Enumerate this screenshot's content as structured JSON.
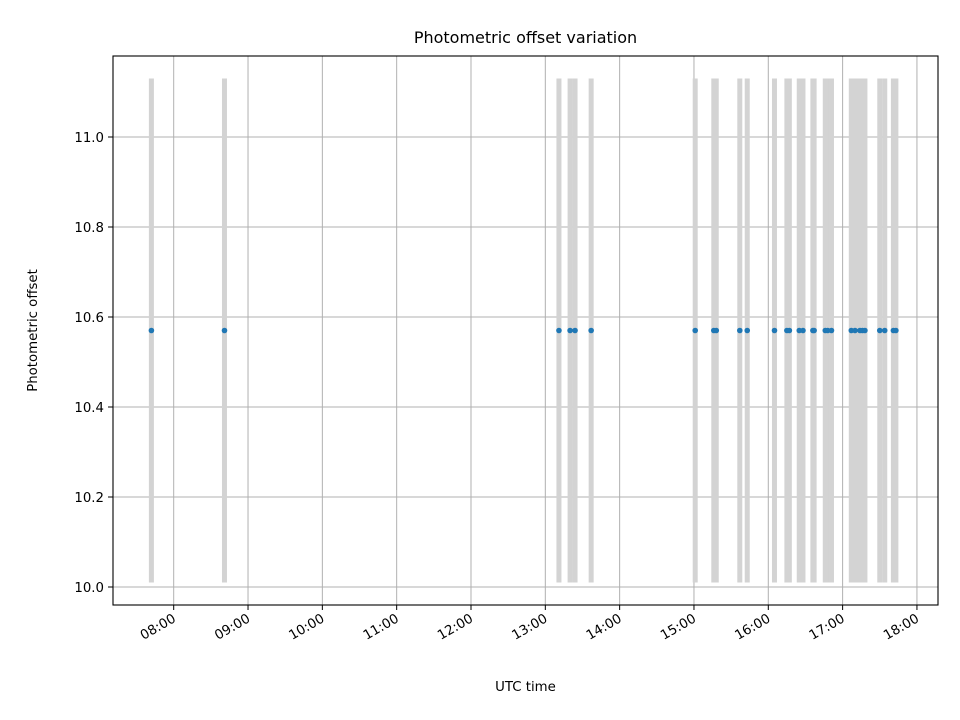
{
  "chart_data": {
    "type": "scatter",
    "title": "Photometric offset variation",
    "xlabel": "UTC time",
    "ylabel": "Photometric offset",
    "x_ticks": [
      "08:00",
      "09:00",
      "10:00",
      "11:00",
      "12:00",
      "13:00",
      "14:00",
      "15:00",
      "16:00",
      "17:00",
      "18:00"
    ],
    "y_ticks": [
      "10.0",
      "10.2",
      "10.4",
      "10.6",
      "10.8",
      "11.0"
    ],
    "xlim": [
      "07:11",
      "18:17"
    ],
    "ylim": [
      9.96,
      11.18
    ],
    "grid": true,
    "colors": {
      "points": "#1f77b4",
      "error_bars": "#d3d3d3",
      "grid": "#b0b0b0"
    },
    "error_bar_range": [
      10.01,
      11.13
    ],
    "series": [
      {
        "x": [
          "07:42",
          "08:41",
          "13:11",
          "13:20",
          "13:24",
          "13:37",
          "15:01",
          "15:16",
          "15:18",
          "15:37",
          "15:43",
          "16:05",
          "16:15",
          "16:17",
          "16:25",
          "16:28",
          "16:36",
          "16:37",
          "16:46",
          "16:48",
          "16:51",
          "17:07",
          "17:10",
          "17:14",
          "17:16",
          "17:18",
          "17:30",
          "17:34",
          "17:41",
          "17:43"
        ],
        "y": [
          10.57,
          10.57,
          10.57,
          10.57,
          10.57,
          10.57,
          10.57,
          10.57,
          10.57,
          10.57,
          10.57,
          10.57,
          10.57,
          10.57,
          10.57,
          10.57,
          10.57,
          10.57,
          10.57,
          10.57,
          10.57,
          10.57,
          10.57,
          10.57,
          10.57,
          10.57,
          10.57,
          10.57,
          10.57,
          10.57
        ]
      }
    ]
  }
}
